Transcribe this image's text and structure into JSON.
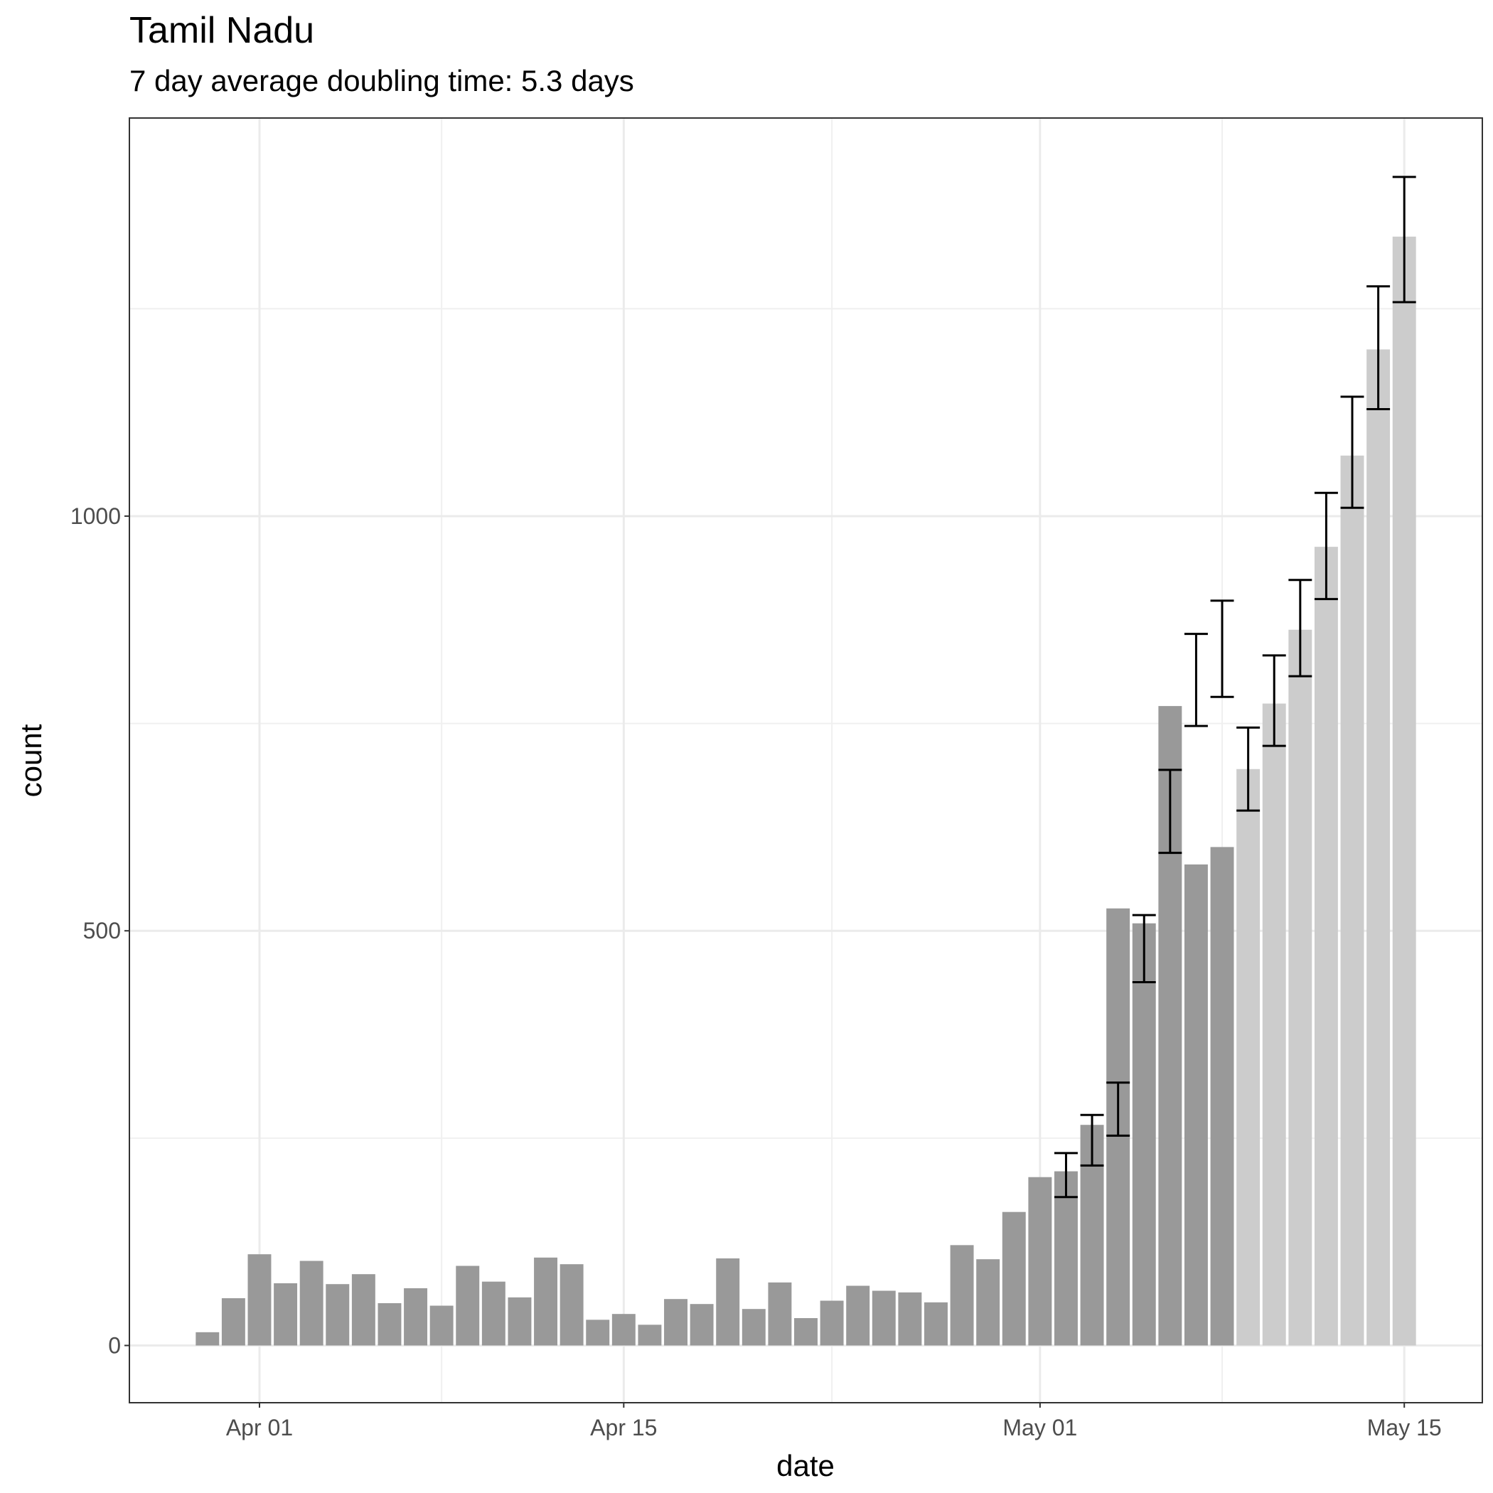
{
  "chart_data": {
    "type": "bar",
    "title": "Tamil Nadu",
    "subtitle": "7 day average doubling time: 5.3 days",
    "x_label": "date",
    "y_label": "count",
    "series": [
      {
        "color": "#999999",
        "x": [
          "03-30",
          "03-31",
          "04-01",
          "04-02",
          "04-03",
          "04-04",
          "04-05",
          "04-06",
          "04-07",
          "04-08",
          "04-09",
          "04-10",
          "04-11",
          "04-12",
          "04-13",
          "04-14",
          "04-15",
          "04-16",
          "04-17",
          "04-18",
          "04-19",
          "04-20",
          "04-21",
          "04-22",
          "04-23",
          "04-24",
          "04-25",
          "04-26",
          "04-27",
          "04-28",
          "04-29",
          "04-30",
          "05-01",
          "05-02",
          "05-03",
          "05-04",
          "05-05",
          "05-06",
          "05-07",
          "05-08"
        ],
        "values": [
          16,
          57,
          110,
          75,
          102,
          74,
          86,
          51,
          69,
          48,
          96,
          77,
          58,
          106,
          98,
          31,
          38,
          25,
          56,
          50,
          105,
          44,
          76,
          33,
          54,
          72,
          66,
          64,
          52,
          121,
          104,
          161,
          203,
          210,
          266,
          527,
          509,
          771,
          580,
          601
        ]
      },
      {
        "color": "#cccccc",
        "x": [
          "05-09",
          "05-10",
          "05-11",
          "05-12",
          "05-13",
          "05-14",
          "05-15"
        ],
        "values": [
          695,
          774,
          863,
          963,
          1073,
          1201,
          1337
        ]
      }
    ],
    "errorbars": {
      "color": "#000000",
      "x": [
        "05-02",
        "05-03",
        "05-04",
        "05-05",
        "05-06",
        "05-07",
        "05-08",
        "05-09",
        "05-10",
        "05-11",
        "05-12",
        "05-13",
        "05-14",
        "05-15"
      ],
      "lower": [
        179,
        217,
        253,
        438,
        594,
        747,
        782,
        645,
        723,
        807,
        900,
        1010,
        1129,
        1258
      ],
      "upper": [
        232,
        278,
        317,
        519,
        694,
        858,
        898,
        745,
        832,
        923,
        1028,
        1144,
        1277,
        1409
      ]
    },
    "xlim": [
      "03-27",
      "05-18"
    ],
    "xticks": [
      {
        "value": "04-01",
        "label": "Apr 01"
      },
      {
        "value": "04-15",
        "label": "Apr 15"
      },
      {
        "value": "05-01",
        "label": "May 01"
      },
      {
        "value": "05-15",
        "label": "May 15"
      }
    ],
    "ylim": [
      -69,
      1480
    ],
    "yticks": [
      0,
      500,
      1000
    ],
    "grid": true
  }
}
